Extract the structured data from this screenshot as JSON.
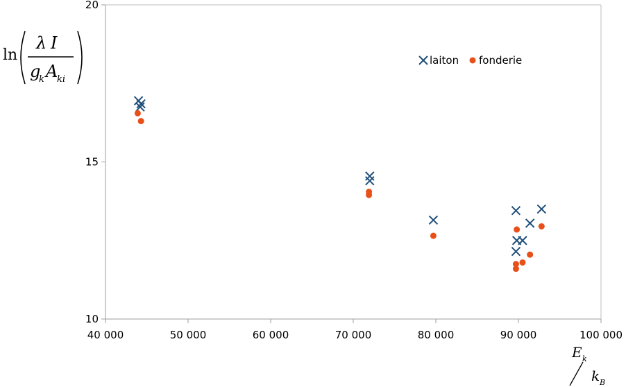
{
  "chart_data": {
    "type": "scatter",
    "xlabel": "Ek/kB",
    "ylabel": "ln(λI / (gk Aki))",
    "xlim": [
      40000,
      100000
    ],
    "ylim": [
      10,
      20
    ],
    "x_ticks": [
      40000,
      50000,
      60000,
      70000,
      80000,
      90000,
      100000
    ],
    "x_tick_labels": [
      "40 000",
      "50 000",
      "60 000",
      "70 000",
      "80 000",
      "90 000",
      "100 000"
    ],
    "y_ticks": [
      10,
      15,
      20
    ],
    "y_tick_labels": [
      "10",
      "15",
      "20"
    ],
    "grid": false,
    "legend": "top-right",
    "series": [
      {
        "name": "laiton",
        "marker": "x",
        "color": "#1f4e79",
        "points": [
          {
            "x": 44000,
            "y": 16.95
          },
          {
            "x": 44300,
            "y": 16.85
          },
          {
            "x": 44200,
            "y": 16.75
          },
          {
            "x": 72000,
            "y": 14.55
          },
          {
            "x": 72000,
            "y": 14.4
          },
          {
            "x": 79700,
            "y": 13.15
          },
          {
            "x": 89700,
            "y": 13.45
          },
          {
            "x": 89800,
            "y": 12.5
          },
          {
            "x": 89700,
            "y": 12.15
          },
          {
            "x": 90500,
            "y": 12.5
          },
          {
            "x": 91400,
            "y": 13.05
          },
          {
            "x": 92800,
            "y": 13.5
          }
        ]
      },
      {
        "name": "fonderie",
        "marker": "circle",
        "color": "#e8501a",
        "points": [
          {
            "x": 43900,
            "y": 16.55
          },
          {
            "x": 44300,
            "y": 16.3
          },
          {
            "x": 71900,
            "y": 14.05
          },
          {
            "x": 71900,
            "y": 13.95
          },
          {
            "x": 79700,
            "y": 12.65
          },
          {
            "x": 89800,
            "y": 12.85
          },
          {
            "x": 89700,
            "y": 11.75
          },
          {
            "x": 89700,
            "y": 11.6
          },
          {
            "x": 90500,
            "y": 11.8
          },
          {
            "x": 91400,
            "y": 12.05
          },
          {
            "x": 92800,
            "y": 12.95
          }
        ]
      }
    ]
  }
}
